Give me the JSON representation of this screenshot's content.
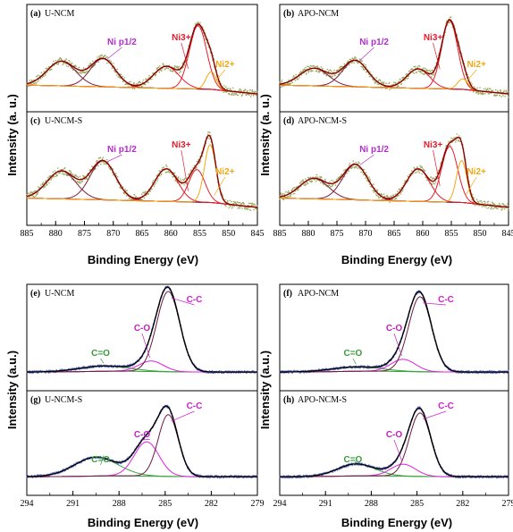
{
  "colors": {
    "envelope": "#8b0000",
    "raw": "#9aa860",
    "background_ni": "#f0a020",
    "ni_sat": "#7a1f3a",
    "ni3": "#e81b2b",
    "ni2": "#f2a813",
    "annot_ni_sat": "#b62bd0",
    "annot_ni3": "#e81b2b",
    "annot_ni2": "#f2a813",
    "background_c": "#3aa33a",
    "raw_c": "#6f7bd6",
    "cc_fit": "#6b1a40",
    "co_fit": "#e020e0",
    "ceo_fit": "#3aa33a",
    "annot_cc": "#d020d0",
    "annot_co": "#c020c0",
    "annot_ceo": "#3a9a3a"
  },
  "ni_axis": {
    "ylabel": "Intensity (a. u.)",
    "xlabel": "Binding Energy (eV)",
    "ticks": [
      "885",
      "880",
      "875",
      "870",
      "865",
      "860",
      "855",
      "850",
      "845"
    ]
  },
  "c_axis": {
    "ylabel": "Intensity (a.u.)",
    "xlabel": "Binding Energy (eV)",
    "ticks": [
      "294",
      "291",
      "288",
      "285",
      "282",
      "279"
    ]
  },
  "chart_data": [
    {
      "type": "line",
      "panel": "a",
      "label": "(a)",
      "title": "U-NCM",
      "xlim": [
        885,
        845
      ],
      "peaks": [
        {
          "name": "Ni p1/2",
          "center": 879.0,
          "height": 0.28,
          "width": 2.5
        },
        {
          "name": "Ni p1/2",
          "center": 871.8,
          "height": 0.32,
          "width": 2.2
        },
        {
          "name": "Ni3+",
          "center": 860.8,
          "height": 0.25,
          "width": 2.2
        },
        {
          "name": "Ni3+",
          "center": 855.3,
          "height": 0.72,
          "width": 1.5
        },
        {
          "name": "Ni2+",
          "center": 853.0,
          "height": 0.2,
          "width": 0.9
        }
      ],
      "annotations": [
        "Ni p1/2",
        "Ni3+",
        "Ni2+"
      ]
    },
    {
      "type": "line",
      "panel": "b",
      "label": "(b)",
      "title": "APO-NCM",
      "xlim": [
        885,
        845
      ],
      "peaks": [
        {
          "name": "Ni p1/2",
          "center": 879.0,
          "height": 0.2,
          "width": 2.5
        },
        {
          "name": "Ni p1/2",
          "center": 871.8,
          "height": 0.3,
          "width": 2.2
        },
        {
          "name": "Ni3+",
          "center": 860.8,
          "height": 0.22,
          "width": 2.0
        },
        {
          "name": "Ni3+",
          "center": 855.3,
          "height": 0.78,
          "width": 1.4
        },
        {
          "name": "Ni2+",
          "center": 853.0,
          "height": 0.12,
          "width": 0.9
        }
      ],
      "annotations": [
        "Ni p1/2",
        "Ni3+",
        "Ni2+"
      ]
    },
    {
      "type": "line",
      "panel": "c",
      "label": "(c)",
      "title": "U-NCM-S",
      "xlim": [
        885,
        845
      ],
      "peaks": [
        {
          "name": "Ni p1/2",
          "center": 879.0,
          "height": 0.3,
          "width": 2.5
        },
        {
          "name": "Ni p1/2",
          "center": 871.8,
          "height": 0.42,
          "width": 2.2
        },
        {
          "name": "Ni3+",
          "center": 860.8,
          "height": 0.35,
          "width": 2.0
        },
        {
          "name": "Ni3+",
          "center": 855.5,
          "height": 0.35,
          "width": 1.4
        },
        {
          "name": "Ni2+",
          "center": 853.2,
          "height": 0.62,
          "width": 1.0
        }
      ],
      "annotations": [
        "Ni p1/2",
        "Ni3+",
        "Ni2+"
      ]
    },
    {
      "type": "line",
      "panel": "d",
      "label": "(d)",
      "title": "APO-NCM-S",
      "xlim": [
        885,
        845
      ],
      "peaks": [
        {
          "name": "Ni p1/2",
          "center": 879.0,
          "height": 0.22,
          "width": 2.5
        },
        {
          "name": "Ni p1/2",
          "center": 871.8,
          "height": 0.38,
          "width": 2.2
        },
        {
          "name": "Ni3+",
          "center": 860.8,
          "height": 0.35,
          "width": 2.0
        },
        {
          "name": "Ni3+",
          "center": 855.3,
          "height": 0.6,
          "width": 1.4
        },
        {
          "name": "Ni2+",
          "center": 853.2,
          "height": 0.45,
          "width": 0.9
        }
      ],
      "annotations": [
        "Ni p1/2",
        "Ni3+",
        "Ni2+"
      ]
    },
    {
      "type": "line",
      "panel": "e",
      "label": "(e)",
      "title": "U-NCM",
      "xlim": [
        294,
        279
      ],
      "peaks": [
        {
          "name": "C=O",
          "center": 289.0,
          "height": 0.06,
          "width": 1.6
        },
        {
          "name": "C-O",
          "center": 285.9,
          "height": 0.12,
          "width": 0.8
        },
        {
          "name": "C-C",
          "center": 284.8,
          "height": 0.92,
          "width": 0.75
        }
      ],
      "annotations": [
        "C=O",
        "C-O",
        "C-C"
      ]
    },
    {
      "type": "line",
      "panel": "f",
      "label": "(f)",
      "title": "APO-NCM",
      "xlim": [
        294,
        279
      ],
      "peaks": [
        {
          "name": "C=O",
          "center": 289.0,
          "height": 0.05,
          "width": 1.6
        },
        {
          "name": "C-O",
          "center": 285.9,
          "height": 0.14,
          "width": 0.8
        },
        {
          "name": "C-C",
          "center": 284.8,
          "height": 0.86,
          "width": 0.75
        }
      ],
      "annotations": [
        "C=O",
        "C-O",
        "C-C"
      ]
    },
    {
      "type": "line",
      "panel": "g",
      "label": "(g)",
      "title": "U-NCM-S",
      "xlim": [
        294,
        279
      ],
      "peaks": [
        {
          "name": "C=O",
          "center": 289.5,
          "height": 0.22,
          "width": 1.4
        },
        {
          "name": "C-O",
          "center": 286.2,
          "height": 0.4,
          "width": 0.8
        },
        {
          "name": "C-C",
          "center": 284.8,
          "height": 0.72,
          "width": 0.65
        }
      ],
      "annotations": [
        "C=O",
        "C-O",
        "C-C"
      ]
    },
    {
      "type": "line",
      "panel": "h",
      "label": "(h)",
      "title": "APO-NCM-S",
      "xlim": [
        294,
        279
      ],
      "peaks": [
        {
          "name": "C=O",
          "center": 289.0,
          "height": 0.14,
          "width": 1.2
        },
        {
          "name": "C-O",
          "center": 285.9,
          "height": 0.14,
          "width": 0.8
        },
        {
          "name": "C-C",
          "center": 284.8,
          "height": 0.74,
          "width": 0.7
        }
      ],
      "annotations": [
        "C=O",
        "C-O",
        "C-C"
      ]
    }
  ]
}
